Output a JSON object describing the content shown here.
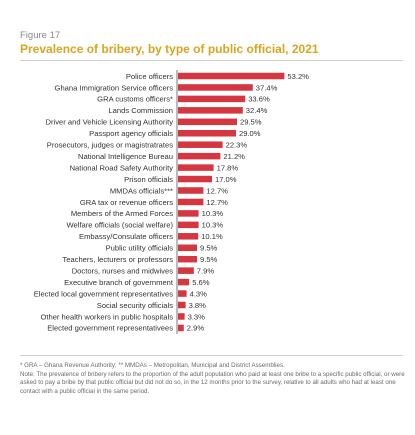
{
  "figure_label": "Figure 17",
  "chart_data": {
    "type": "bar",
    "orientation": "horizontal",
    "title": "Prevalence of bribery, by type of public official, 2021",
    "bar_color": "#d4373f",
    "xlim": [
      0,
      60
    ],
    "categories": [
      "Police officers",
      "Ghana Immigration Service officers",
      "GRA customs officers*",
      "Lands Commission",
      "Driver and Vehicle Licensing Authority",
      "Passport agency officials",
      "Prosecutors, judges or magistratrates",
      "National Intelligence Bureau",
      "National Road Safety Authority",
      "Prison officials",
      "MMDAs officials***",
      "GRA tax or revenue officers",
      "Members of the Armed Forces",
      "Welfare officials (social welfare)",
      "Embassy/Consulate officers",
      "Public utility officials",
      "Teachers, lecturers or professors",
      "Doctors, nurses and midwives",
      "Executive branch of government",
      "Elected local government representatives",
      "Social security officials",
      "Other health workers in public hospitals",
      "Elected government representativees"
    ],
    "values": [
      53.2,
      37.4,
      33.6,
      32.4,
      29.5,
      29.0,
      22.3,
      21.2,
      17.8,
      17.0,
      12.7,
      12.7,
      10.3,
      10.3,
      10.1,
      9.5,
      9.5,
      7.9,
      5.6,
      4.3,
      3.8,
      3.3,
      2.9
    ],
    "value_labels": [
      "53.2%",
      "37.4%",
      "33.6%",
      "32.4%",
      "29.5%",
      "29.0%",
      "22.3%",
      "21.2%",
      "17.8%",
      "17.0%",
      "12.7%",
      "12.7%",
      "10.3%",
      "10.3%",
      "10.1%",
      "9.5%",
      "9.5%",
      "7.9%",
      "5.6%",
      "4.3%",
      "3.8%",
      "3.3%",
      "2.9%"
    ]
  },
  "notes": {
    "abbrev": "* GRA – Ghana Revenue Authority; ** MMDAs – Metropolitan, Municipal and District Assemblies.",
    "note": "Note: The prevalence of bribery refers to the proportion of the adult population who paid at least one bribe to a specific public official, or were asked to pay a bribe by that public official but did not do so, in the 12 months prior to the survey, relative to all adults who had at least one contact with a public official in the same period."
  }
}
